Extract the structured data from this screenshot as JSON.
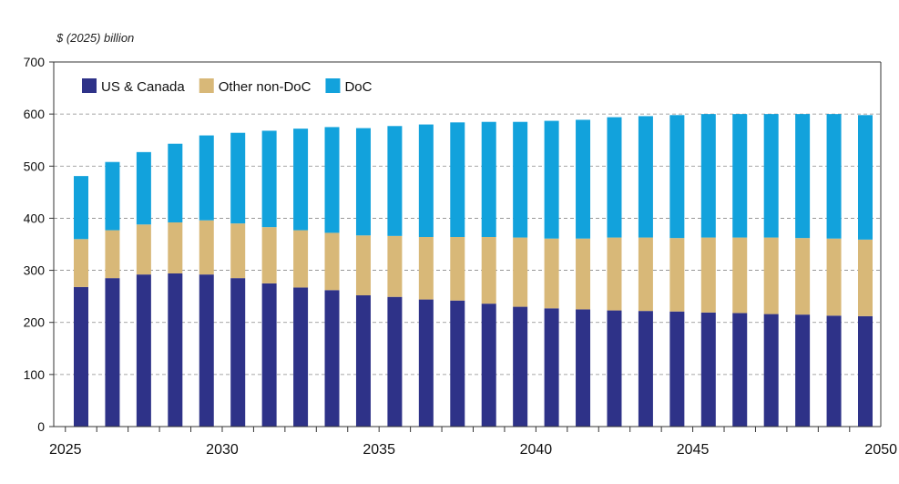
{
  "chart_data": {
    "type": "bar",
    "stacked": true,
    "title": "",
    "xlabel": "",
    "ylabel": "$ (2025) billion",
    "ylim": [
      0,
      700
    ],
    "yticks": [
      0,
      100,
      200,
      300,
      400,
      500,
      600,
      700
    ],
    "xtick_labels": [
      "2025",
      "2030",
      "2035",
      "2040",
      "2045",
      "2050"
    ],
    "grid": "dashed horizontal at 200, 300, 400, 500, 600",
    "legend_position": "top-left",
    "categories": [
      2025,
      2026,
      2027,
      2028,
      2029,
      2030,
      2031,
      2032,
      2033,
      2034,
      2035,
      2036,
      2037,
      2038,
      2039,
      2040,
      2041,
      2042,
      2043,
      2044,
      2045,
      2046,
      2047,
      2048,
      2049,
      2050
    ],
    "series": [
      {
        "name": "US & Canada",
        "color": "#2e3288",
        "values": [
          268,
          285,
          292,
          294,
          292,
          285,
          275,
          267,
          262,
          252,
          249,
          244,
          242,
          236,
          230,
          227,
          225,
          223,
          222,
          221,
          219,
          218,
          216,
          215,
          213,
          212
        ]
      },
      {
        "name": "Other non-DoC",
        "color": "#d8b878",
        "values": [
          92,
          92,
          96,
          98,
          104,
          105,
          108,
          110,
          110,
          115,
          117,
          120,
          122,
          128,
          133,
          134,
          136,
          140,
          141,
          141,
          144,
          145,
          147,
          147,
          148,
          147
        ]
      },
      {
        "name": "DoC",
        "color": "#12a2dc",
        "values": [
          121,
          131,
          139,
          151,
          163,
          174,
          185,
          195,
          203,
          206,
          211,
          216,
          220,
          221,
          222,
          226,
          228,
          231,
          233,
          236,
          237,
          237,
          237,
          238,
          239,
          239
        ]
      }
    ]
  }
}
